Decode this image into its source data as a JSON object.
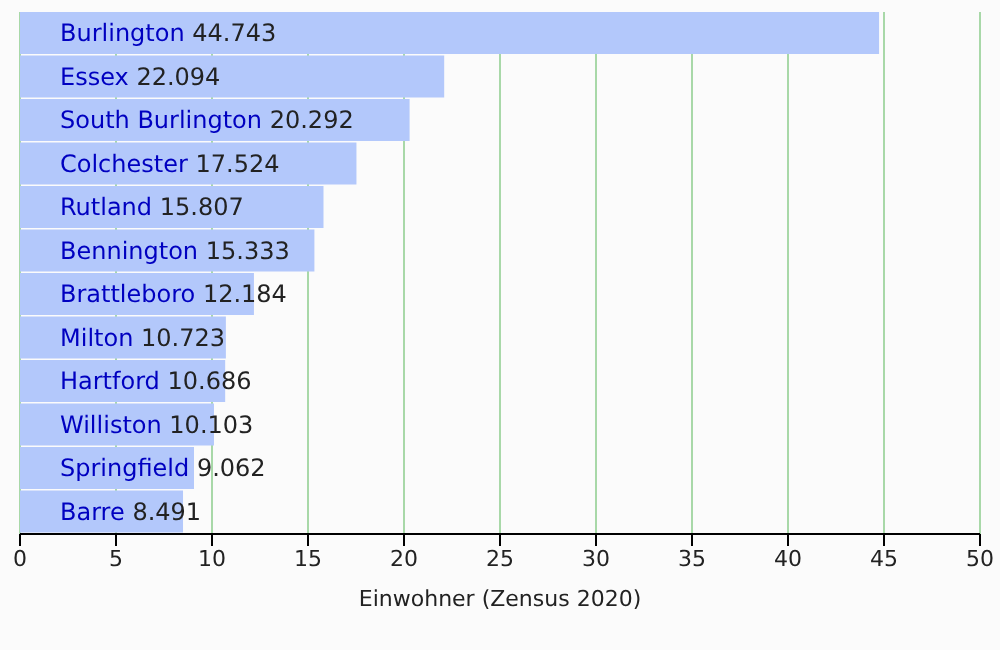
{
  "chart_data": {
    "type": "bar",
    "orientation": "horizontal",
    "xlabel": "Einwohner (Zensus 2020)",
    "categories": [
      "Burlington",
      "Essex",
      "South Burlington",
      "Colchester",
      "Rutland",
      "Bennington",
      "Brattleboro",
      "Milton",
      "Hartford",
      "Williston",
      "Springfield",
      "Barre"
    ],
    "values": [
      44.743,
      22.094,
      20.292,
      17.524,
      15.807,
      15.333,
      12.184,
      10.723,
      10.686,
      10.103,
      9.062,
      8.491
    ],
    "value_labels": [
      "44.743",
      "22.094",
      "20.292",
      "17.524",
      "15.807",
      "15.333",
      "12.184",
      "10.723",
      "10.686",
      "10.103",
      "9.062",
      "8.491"
    ],
    "color": "#b3c8fb",
    "xlim": [
      0,
      50
    ],
    "xticks": [
      0,
      5,
      10,
      15,
      20,
      25,
      30,
      35,
      40,
      45,
      50
    ],
    "grid": "x",
    "tick_labels": "x"
  }
}
